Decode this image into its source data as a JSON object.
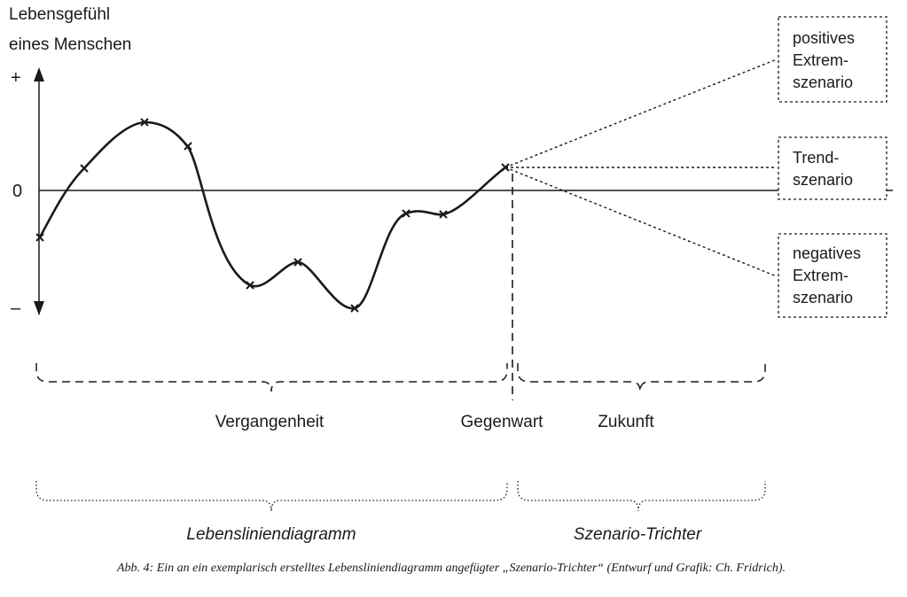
{
  "y_axis": {
    "title_line1": "Lebensgefühl",
    "title_line2": "eines Menschen",
    "plus": "+",
    "zero": "0",
    "minus": "–"
  },
  "scenarios": {
    "positive": [
      "positives",
      "Extrem-",
      "szenario"
    ],
    "trend": [
      "Trend-",
      "szenario"
    ],
    "negative": [
      "negatives",
      "Extrem-",
      "szenario"
    ]
  },
  "time_labels": {
    "past": "Vergangenheit",
    "present": "Gegenwart",
    "future": "Zukunft"
  },
  "section_labels": {
    "lifeline": "Lebensliniendiagramm",
    "funnel": "Szenario-Trichter"
  },
  "caption": "Abb. 4: Ein an ein exemplarisch erstelltes Lebensliniendiagramm angefügter „Szenario-Trichter“ (Entwurf und Grafik: Ch. Fridrich).",
  "colors": {
    "ink": "#1a1a1a",
    "background": "#ffffff"
  }
}
